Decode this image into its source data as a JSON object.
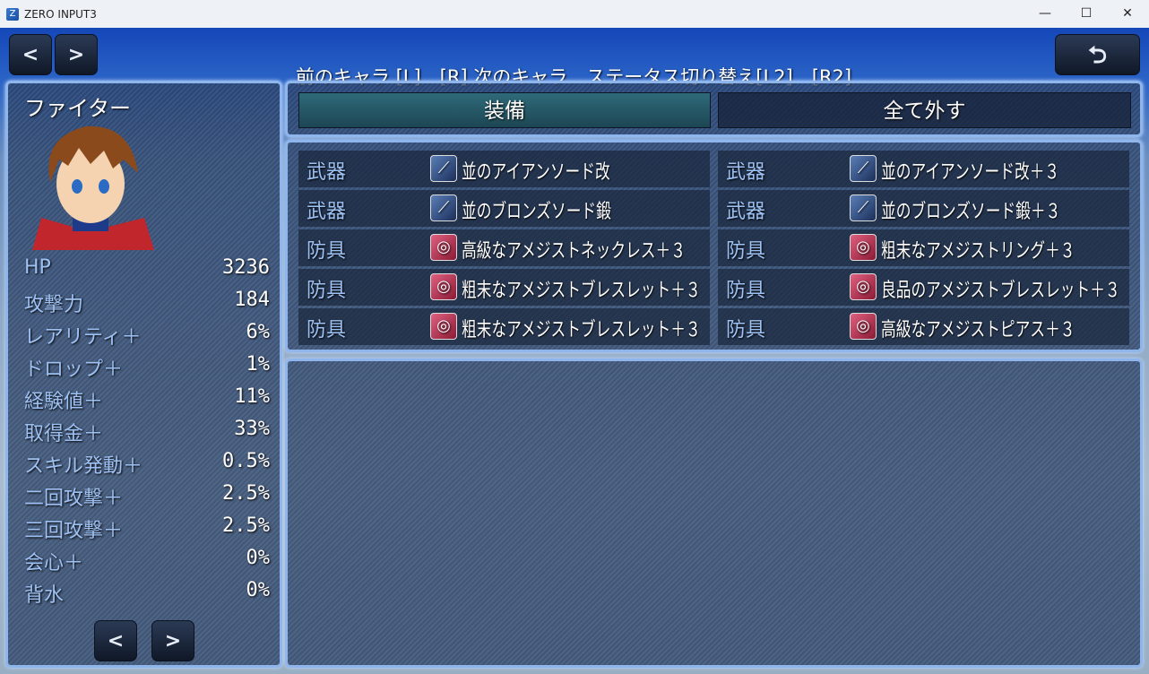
{
  "window": {
    "title": "ZERO INPUT3",
    "minimize": "—",
    "maximize": "☐",
    "close": "✕"
  },
  "topbar": {
    "prev": "<",
    "next": ">",
    "hint": "前のキャラ [L]　[R] 次のキャラ　ステータス切り替え[L2]　[R2]",
    "back": "⮌"
  },
  "character": {
    "name": "ファイター",
    "stats": [
      {
        "label": "HP",
        "value": "3236"
      },
      {
        "label": "攻撃力",
        "value": "184"
      },
      {
        "label": "レアリティ＋",
        "value": "6%"
      },
      {
        "label": "ドロップ＋",
        "value": "1%"
      },
      {
        "label": "経験値＋",
        "value": "11%"
      },
      {
        "label": "取得金＋",
        "value": "33%"
      },
      {
        "label": "スキル発動＋",
        "value": "0.5%"
      },
      {
        "label": "二回攻撃＋",
        "value": "2.5%"
      },
      {
        "label": "三回攻撃＋",
        "value": "2.5%"
      },
      {
        "label": "会心＋",
        "value": "0%"
      },
      {
        "label": "背水",
        "value": "0%"
      }
    ],
    "page_prev": "<",
    "page_next": ">"
  },
  "commands": {
    "equip": "装備",
    "unequip_all": "全て外す"
  },
  "slots": [
    {
      "type": "武器",
      "icon": "sword-icon",
      "item": "並のアイアンソード改"
    },
    {
      "type": "武器",
      "icon": "sword-icon",
      "item": "並のアイアンソード改＋３"
    },
    {
      "type": "武器",
      "icon": "sword-icon",
      "item": "並のブロンズソード鍛"
    },
    {
      "type": "武器",
      "icon": "sword-icon",
      "item": "並のブロンズソード鍛＋３"
    },
    {
      "type": "防具",
      "icon": "ring-icon",
      "item": "高級なアメジストネックレス＋３"
    },
    {
      "type": "防具",
      "icon": "ring-icon",
      "item": "粗末なアメジストリング＋３"
    },
    {
      "type": "防具",
      "icon": "ring-icon",
      "item": "粗末なアメジストブレスレット＋３"
    },
    {
      "type": "防具",
      "icon": "ring-icon",
      "item": "良品のアメジストブレスレット＋３"
    },
    {
      "type": "防具",
      "icon": "ring-icon",
      "item": "粗末なアメジストブレスレット＋３"
    },
    {
      "type": "防具",
      "icon": "ring-icon",
      "item": "高級なアメジストピアス＋３"
    }
  ]
}
